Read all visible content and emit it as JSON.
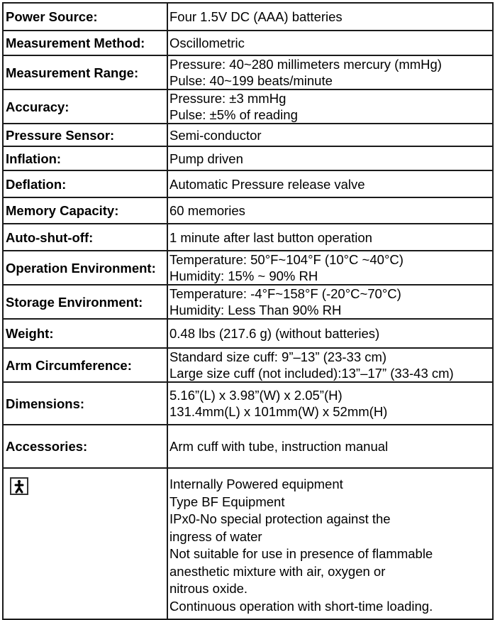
{
  "specs": [
    {
      "label": "Power Source:",
      "lines": [
        "Four 1.5V DC (AAA) batteries"
      ]
    },
    {
      "label": "Measurement Method:",
      "lines": [
        "Oscillometric"
      ]
    },
    {
      "label": "Measurement Range:",
      "lines": [
        "Pressure: 40~280 millimeters mercury (mmHg)",
        "Pulse: 40~199 beats/minute"
      ]
    },
    {
      "label": "Accuracy:",
      "lines": [
        "Pressure: ±3 mmHg",
        "Pulse: ±5% of reading"
      ]
    },
    {
      "label": "Pressure Sensor:",
      "lines": [
        "Semi-conductor"
      ]
    },
    {
      "label": "Inflation:",
      "lines": [
        "Pump driven"
      ]
    },
    {
      "label": "Deflation:",
      "lines": [
        "Automatic Pressure release valve"
      ]
    },
    {
      "label": "Memory Capacity:",
      "lines": [
        "60 memories"
      ]
    },
    {
      "label": "Auto-shut-off:",
      "lines": [
        "1 minute after last button operation"
      ]
    },
    {
      "label": "Operation Environment:",
      "lines": [
        "Temperature: 50°F~104°F (10°C ~40°C)",
        "Humidity: 15% ~ 90% RH"
      ]
    },
    {
      "label": "Storage Environment:",
      "lines": [
        "Temperature: -4°F~158°F (-20°C~70°C)",
        "Humidity: Less Than 90% RH"
      ]
    },
    {
      "label": "Weight:",
      "lines": [
        "0.48 lbs (217.6 g) (without batteries)"
      ]
    },
    {
      "label": "Arm Circumference:",
      "lines": [
        "Standard size cuff: 9”–13” (23-33 cm)",
        "Large size cuff (not included):13”–17” (33-43 cm)"
      ]
    },
    {
      "label": "Dimensions:",
      "lines": [
        "5.16”(L) x 3.98”(W) x 2.05”(H)",
        "131.4mm(L) x 101mm(W) x 52mm(H)"
      ]
    },
    {
      "label": "Accessories:",
      "lines": [
        "Arm cuff with tube, instruction manual"
      ]
    }
  ],
  "classification": {
    "icon": "type-bf-symbol-icon",
    "lines": [
      "Internally Powered equipment",
      "Type BF Equipment",
      "IPx0-No special protection against the",
      "ingress of water",
      "Not suitable for use in presence of flammable",
      "anesthetic mixture with air, oxygen or",
      "nitrous oxide.",
      "Continuous operation with short-time loading."
    ]
  }
}
